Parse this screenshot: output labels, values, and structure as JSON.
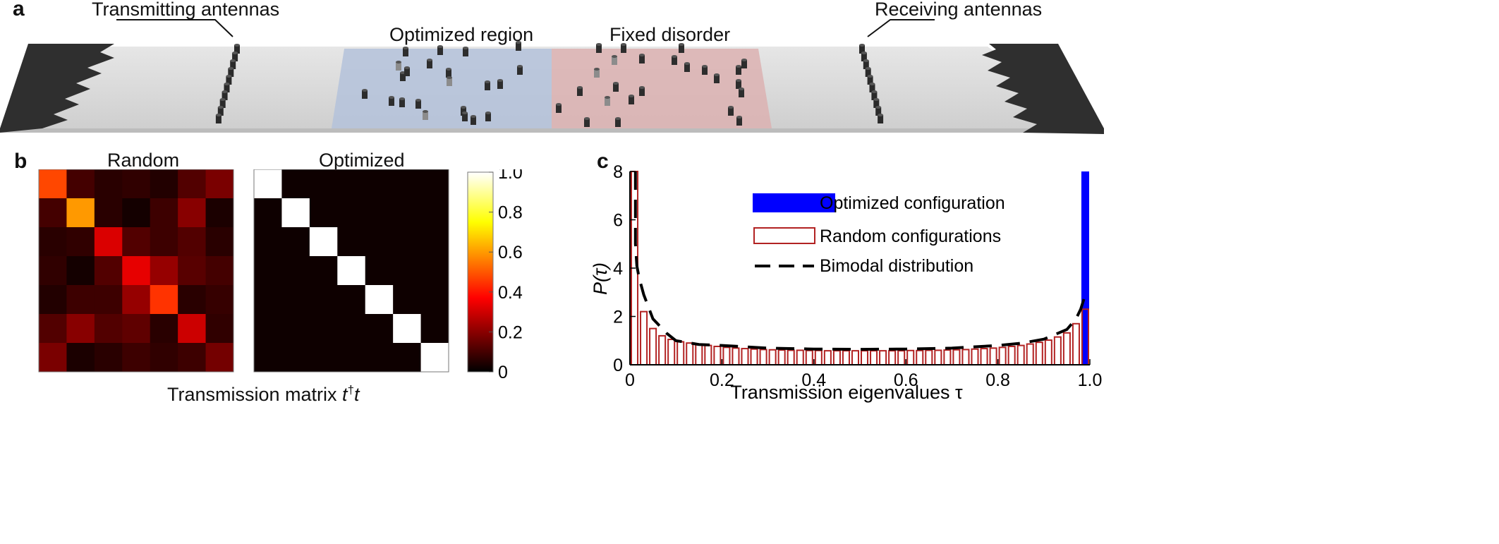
{
  "panel_a": {
    "letter": "a",
    "labels": {
      "transmitting": "Transmitting antennas",
      "optimized": "Optimized region",
      "fixed": "Fixed disorder",
      "receiving": "Receiving antennas"
    },
    "colors": {
      "optimized_region": "#b4c2da",
      "fixed_region": "#dcb2b2",
      "waveguide": "#d9d9d9",
      "absorber": "#333333",
      "scatterer": "#2d2d2d"
    }
  },
  "panel_b": {
    "letter": "b",
    "random_title": "Random",
    "optimized_title": "Optimized",
    "xlabel_prefix": "Transmission matrix ",
    "xlabel_symbol": "t",
    "xlabel_sup": "†",
    "xlabel_suffix": "t",
    "colorbar": {
      "ticks": [
        "1.0",
        "0.8",
        "0.6",
        "0.4",
        "0.2",
        "0"
      ],
      "range": [
        0,
        1
      ],
      "colormap": "hot"
    }
  },
  "panel_c": {
    "letter": "c",
    "ylabel": "P(τ)",
    "xlabel": "Transmission eigenvalues τ",
    "legend": {
      "optimized": "Optimized configuration",
      "random": "Random configurations",
      "bimodal": "Bimodal distribution"
    },
    "colors": {
      "optimized": "#0000ff",
      "random": "#b22222",
      "bimodal": "#000000"
    }
  },
  "chart_data": [
    {
      "type": "heatmap",
      "title": "Random",
      "rows": 7,
      "cols": 7,
      "range": [
        0,
        1
      ],
      "values": [
        [
          0.48,
          0.1,
          0.06,
          0.07,
          0.05,
          0.12,
          0.18
        ],
        [
          0.1,
          0.6,
          0.06,
          0.03,
          0.09,
          0.2,
          0.04
        ],
        [
          0.06,
          0.07,
          0.32,
          0.12,
          0.09,
          0.12,
          0.06
        ],
        [
          0.07,
          0.03,
          0.12,
          0.34,
          0.22,
          0.13,
          0.1
        ],
        [
          0.05,
          0.09,
          0.09,
          0.22,
          0.45,
          0.06,
          0.08
        ],
        [
          0.12,
          0.2,
          0.12,
          0.14,
          0.06,
          0.3,
          0.07
        ],
        [
          0.18,
          0.04,
          0.06,
          0.09,
          0.07,
          0.09,
          0.17
        ]
      ]
    },
    {
      "type": "heatmap",
      "title": "Optimized",
      "rows": 7,
      "cols": 7,
      "range": [
        0,
        1
      ],
      "values": [
        [
          1,
          0.02,
          0.02,
          0.02,
          0.02,
          0.02,
          0.02
        ],
        [
          0.02,
          1,
          0.02,
          0.02,
          0.02,
          0.02,
          0.02
        ],
        [
          0.02,
          0.02,
          1,
          0.02,
          0.02,
          0.02,
          0.02
        ],
        [
          0.02,
          0.02,
          0.02,
          1,
          0.02,
          0.02,
          0.02
        ],
        [
          0.02,
          0.02,
          0.02,
          0.02,
          1,
          0.02,
          0.02
        ],
        [
          0.02,
          0.02,
          0.02,
          0.02,
          0.02,
          1,
          0.02
        ],
        [
          0.02,
          0.02,
          0.02,
          0.02,
          0.02,
          0.02,
          1
        ]
      ]
    },
    {
      "type": "bar",
      "xlabel": "Transmission eigenvalues τ",
      "ylabel": "P(τ)",
      "xlim": [
        0,
        1
      ],
      "ylim": [
        0,
        8
      ],
      "xticks": [
        "0",
        "0.2",
        "0.4",
        "0.6",
        "0.8",
        "1.0"
      ],
      "yticks": [
        "0",
        "2",
        "4",
        "6",
        "8"
      ],
      "legend_position": "top-right",
      "bin_width": 0.02,
      "series": [
        {
          "name": "Random configurations",
          "bin_start": [
            0,
            0.02,
            0.04,
            0.06,
            0.08,
            0.1,
            0.12,
            0.14,
            0.16,
            0.18,
            0.2,
            0.22,
            0.24,
            0.26,
            0.28,
            0.3,
            0.32,
            0.34,
            0.36,
            0.38,
            0.4,
            0.42,
            0.44,
            0.46,
            0.48,
            0.5,
            0.52,
            0.54,
            0.56,
            0.58,
            0.6,
            0.62,
            0.64,
            0.66,
            0.68,
            0.7,
            0.72,
            0.74,
            0.76,
            0.78,
            0.8,
            0.82,
            0.84,
            0.86,
            0.88,
            0.9,
            0.92,
            0.94,
            0.96,
            0.98
          ],
          "values": [
            8,
            2.2,
            1.5,
            1.2,
            1.05,
            0.95,
            0.9,
            0.85,
            0.8,
            0.76,
            0.72,
            0.69,
            0.67,
            0.65,
            0.63,
            0.62,
            0.61,
            0.6,
            0.6,
            0.59,
            0.59,
            0.58,
            0.58,
            0.58,
            0.58,
            0.58,
            0.58,
            0.58,
            0.58,
            0.58,
            0.59,
            0.59,
            0.6,
            0.6,
            0.61,
            0.62,
            0.63,
            0.65,
            0.67,
            0.69,
            0.72,
            0.76,
            0.8,
            0.86,
            0.93,
            1.02,
            1.15,
            1.32,
            1.7,
            2.3
          ]
        },
        {
          "name": "Optimized configuration",
          "bin_start": [
            0.98
          ],
          "values": [
            8
          ]
        },
        {
          "name": "Bimodal distribution",
          "type": "line",
          "x": [
            0.01,
            0.015,
            0.02,
            0.03,
            0.05,
            0.08,
            0.1,
            0.15,
            0.2,
            0.3,
            0.4,
            0.5,
            0.6,
            0.7,
            0.8,
            0.85,
            0.9,
            0.95,
            0.97,
            0.98,
            0.99
          ],
          "y": [
            5.0,
            4.1,
            3.6,
            2.9,
            1.9,
            1.3,
            1.0,
            0.84,
            0.8,
            0.69,
            0.65,
            0.64,
            0.65,
            0.69,
            0.8,
            0.89,
            1.06,
            1.46,
            1.9,
            2.3,
            2.9
          ]
        }
      ]
    }
  ]
}
